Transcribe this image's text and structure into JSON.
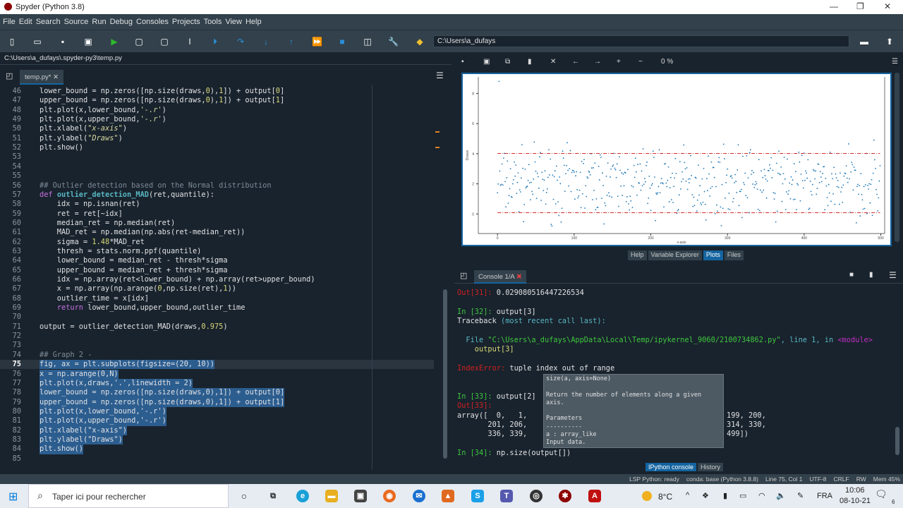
{
  "window": {
    "title": "Spyder (Python 3.8)"
  },
  "menu": [
    "File",
    "Edit",
    "Search",
    "Source",
    "Run",
    "Debug",
    "Consoles",
    "Projects",
    "Tools",
    "View",
    "Help"
  ],
  "toolbar": {
    "cwd": "C:\\Users\\a_dufays"
  },
  "editor": {
    "path": "C:\\Users\\a_dufays\\.spyder-py3\\temp.py",
    "tab": "temp.py*",
    "current_line": 75,
    "lines": [
      {
        "n": 46,
        "s": [
          [
            "lower_bound = np.zeros([np.size(draws,",
            "op"
          ],
          [
            "0",
            "num"
          ],
          [
            "),",
            "op"
          ],
          [
            "1",
            "num"
          ],
          [
            "]) + output[",
            "op"
          ],
          [
            "0",
            "num"
          ],
          [
            "]",
            "op"
          ]
        ]
      },
      {
        "n": 47,
        "s": [
          [
            "upper_bound = np.zeros([np.size(draws,",
            "op"
          ],
          [
            "0",
            "num"
          ],
          [
            "),",
            "op"
          ],
          [
            "1",
            "num"
          ],
          [
            "]) + output[",
            "op"
          ],
          [
            "1",
            "num"
          ],
          [
            "]",
            "op"
          ]
        ]
      },
      {
        "n": 48,
        "s": [
          [
            "plt.plot(x,lower_bound,",
            "op"
          ],
          [
            "'-.r'",
            "str"
          ],
          [
            ")",
            "op"
          ]
        ]
      },
      {
        "n": 49,
        "s": [
          [
            "plt.plot(x,upper_bound,",
            "op"
          ],
          [
            "'-.r'",
            "str"
          ],
          [
            ")",
            "op"
          ]
        ]
      },
      {
        "n": 50,
        "s": [
          [
            "plt.xlabel(",
            "op"
          ],
          [
            "\"x-axis\"",
            "str"
          ],
          [
            ")",
            "op"
          ]
        ]
      },
      {
        "n": 51,
        "s": [
          [
            "plt.ylabel(",
            "op"
          ],
          [
            "\"Draws\"",
            "str"
          ],
          [
            ")",
            "op"
          ]
        ]
      },
      {
        "n": 52,
        "s": [
          [
            "plt.show()",
            "op"
          ]
        ]
      },
      {
        "n": 53,
        "s": []
      },
      {
        "n": 54,
        "s": []
      },
      {
        "n": 55,
        "s": []
      },
      {
        "n": 56,
        "s": [
          [
            "## Outlier detection based on the Normal distribution",
            "cm"
          ]
        ]
      },
      {
        "n": 57,
        "s": [
          [
            "def ",
            "kw"
          ],
          [
            "outlier_detection_MAD",
            "fn"
          ],
          [
            "(ret,quantile):",
            "op"
          ]
        ]
      },
      {
        "n": 58,
        "s": [
          [
            "    idx = np.isnan(ret)",
            "op"
          ]
        ]
      },
      {
        "n": 59,
        "s": [
          [
            "    ret = ret[~idx]",
            "op"
          ]
        ]
      },
      {
        "n": 60,
        "s": [
          [
            "    median_ret = np.median(ret)",
            "op"
          ]
        ]
      },
      {
        "n": 61,
        "s": [
          [
            "    MAD_ret = np.median(np.abs(ret-median_ret))",
            "op"
          ]
        ]
      },
      {
        "n": 62,
        "s": [
          [
            "    sigma = ",
            "op"
          ],
          [
            "1.48",
            "num"
          ],
          [
            "*MAD_ret",
            "op"
          ]
        ]
      },
      {
        "n": 63,
        "s": [
          [
            "    thresh = stats.norm.ppf(quantile)",
            "op"
          ]
        ]
      },
      {
        "n": 64,
        "s": [
          [
            "    lower_bound = median_ret - thresh*sigma",
            "op"
          ]
        ]
      },
      {
        "n": 65,
        "s": [
          [
            "    upper_bound = median_ret + thresh*sigma",
            "op"
          ]
        ]
      },
      {
        "n": 66,
        "s": [
          [
            "    idx = np.array(ret<lower_bound) + np.array(ret>upper_bound)",
            "op"
          ]
        ]
      },
      {
        "n": 67,
        "s": [
          [
            "    x = np.array(np.arange(",
            "op"
          ],
          [
            "0",
            "num"
          ],
          [
            ",np.size(ret),",
            "op"
          ],
          [
            "1",
            "num"
          ],
          [
            "))",
            "op"
          ]
        ]
      },
      {
        "n": 68,
        "s": [
          [
            "    outlier_time = x[idx]",
            "op"
          ]
        ]
      },
      {
        "n": 69,
        "s": [
          [
            "    ",
            "op"
          ],
          [
            "return",
            "kw"
          ],
          [
            " lower_bound,upper_bound,outlier_time",
            "op"
          ]
        ]
      },
      {
        "n": 70,
        "s": []
      },
      {
        "n": 71,
        "s": [
          [
            "output = outlier_detection_MAD(draws,",
            "op"
          ],
          [
            "0.975",
            "num"
          ],
          [
            ")",
            "op"
          ]
        ]
      },
      {
        "n": 72,
        "s": []
      },
      {
        "n": 73,
        "s": []
      },
      {
        "n": 74,
        "s": [
          [
            "## Graph 2 -",
            "cm"
          ]
        ]
      },
      {
        "n": 75,
        "sel": true,
        "s": [
          [
            "fig, ax = plt.subplots(figsize=(20, 10))",
            "op"
          ]
        ]
      },
      {
        "n": 76,
        "sel": true,
        "s": [
          [
            "x = np.arange(0,N)",
            "op"
          ]
        ]
      },
      {
        "n": 77,
        "sel": true,
        "s": [
          [
            "plt.plot(x,draws,'.',linewidth = 2)",
            "op"
          ]
        ]
      },
      {
        "n": 78,
        "sel": true,
        "s": [
          [
            "lower_bound = np.zeros([np.size(draws,0),1]) + output[0]",
            "op"
          ]
        ]
      },
      {
        "n": 79,
        "sel": true,
        "s": [
          [
            "upper_bound = np.zeros([np.size(draws,0),1]) + output[1]",
            "op"
          ]
        ]
      },
      {
        "n": 80,
        "sel": true,
        "s": [
          [
            "plt.plot(x,lower_bound,'-.r')",
            "op"
          ]
        ]
      },
      {
        "n": 81,
        "sel": true,
        "s": [
          [
            "plt.plot(x,upper_bound,'-.r')",
            "op"
          ]
        ]
      },
      {
        "n": 82,
        "sel": true,
        "s": [
          [
            "plt.xlabel(\"x-axis\")",
            "op"
          ]
        ]
      },
      {
        "n": 83,
        "sel": true,
        "s": [
          [
            "plt.ylabel(\"Draws\")",
            "op"
          ]
        ]
      },
      {
        "n": 84,
        "sel": true,
        "s": [
          [
            "plt.show()",
            "op"
          ]
        ]
      },
      {
        "n": 85,
        "s": []
      }
    ]
  },
  "plots_pane": {
    "zoom": "0 %",
    "tabs": [
      "Help",
      "Variable Explorer",
      "Plots",
      "Files"
    ],
    "active_tab": "Plots",
    "plot": {
      "type": "scatter",
      "xlabel": "x-axis",
      "ylabel": "Draws",
      "xlim": [
        -25,
        505
      ],
      "ylim": [
        -1.3,
        9.1
      ],
      "xticks": [
        "0",
        "100",
        "200",
        "300",
        "400",
        "500"
      ],
      "yticks": [
        "0",
        "2",
        "4",
        "6",
        "8"
      ],
      "lower_bound": 0.08,
      "upper_bound": 4.02,
      "n_points": 500,
      "point_color": "#1f77b4",
      "bound_color": "#d62728"
    }
  },
  "console": {
    "tab": "Console 1/A",
    "lines": [
      [
        [
          "Out[31]: ",
          "r"
        ],
        [
          "0.029080516447226534",
          ""
        ]
      ],
      [],
      [
        [
          "In [32]: ",
          "g"
        ],
        [
          "output[3]",
          ""
        ]
      ],
      [
        [
          "Traceback ",
          ""
        ],
        [
          "(most recent call last):",
          "cy"
        ]
      ],
      [],
      [
        [
          "  File ",
          "cy"
        ],
        [
          "\"C:\\Users\\a_dufays\\AppData\\Local\\Temp/ipykernel_9060/2100734862.py\"",
          "g"
        ],
        [
          ", line 1, in ",
          "cy"
        ],
        [
          "<module>",
          "m"
        ]
      ],
      [
        [
          "    output[3]",
          "y"
        ]
      ],
      [],
      [
        [
          "IndexError: ",
          "r"
        ],
        [
          "tuple index out of range",
          ""
        ]
      ],
      [],
      [],
      [
        [
          "In [33]: ",
          "g"
        ],
        [
          "output[2]",
          ""
        ]
      ],
      [
        [
          "Out[33]:",
          "r"
        ]
      ],
      [
        [
          "array([  0,   1,                                              199, 200,",
          ""
        ]
      ],
      [
        [
          "       201, 206,                                             314, 330,",
          ""
        ]
      ],
      [
        [
          "       336, 339,                                             499])",
          ""
        ]
      ],
      [],
      [
        [
          "In [34]: ",
          "g"
        ],
        [
          "np.size(output[])",
          ""
        ]
      ]
    ],
    "tooltip": "size(a, axis=None)\n\nReturn the number of elements along a given axis.\n\nParameters\n----------\na : array_like\nInput data.\naxis : int, optional ...",
    "bottom_tabs": [
      "IPython console",
      "History"
    ]
  },
  "statusbar": {
    "lsp": "LSP Python: ready",
    "conda": "conda: base (Python 3.8.8)",
    "position": "Line 75, Col 1",
    "encoding": "UTF-8",
    "eol": "CRLF",
    "mode": "RW",
    "mem": "Mem 45%"
  },
  "taskbar": {
    "search_placeholder": "Taper ici pour rechercher",
    "temp": "8°C",
    "lang": "FRA",
    "time": "10:06",
    "date": "08-10-21",
    "notifications": "6"
  }
}
